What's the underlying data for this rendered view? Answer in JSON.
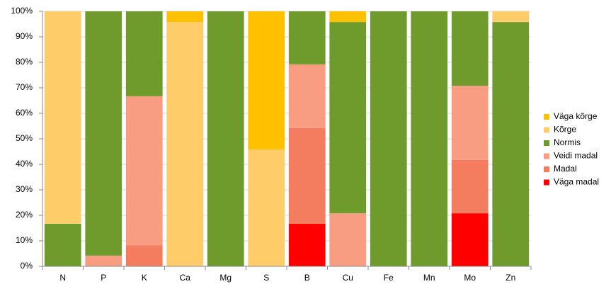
{
  "chart_data": {
    "type": "stacked_bar",
    "categories": [
      "N",
      "P",
      "K",
      "Ca",
      "Mg",
      "S",
      "B",
      "Cu",
      "Fe",
      "Mn",
      "Mo",
      "Zn"
    ],
    "series": [
      {
        "name": "Väga madal",
        "color": "#ff0000",
        "values": [
          0,
          0,
          0,
          0,
          0,
          0,
          16.7,
          0,
          0,
          0,
          20.8,
          0
        ]
      },
      {
        "name": "Madal",
        "color": "#f47c5f",
        "values": [
          0,
          0,
          8.3,
          0,
          0,
          0,
          37.5,
          0,
          0,
          0,
          20.9,
          0
        ]
      },
      {
        "name": "Veidi madal",
        "color": "#f89d82",
        "values": [
          0,
          4.2,
          58.4,
          0,
          0,
          0,
          25,
          20.8,
          0,
          0,
          29.1,
          0
        ]
      },
      {
        "name": "Normis",
        "color": "#6f9a2c",
        "values": [
          16.7,
          95.8,
          33.3,
          0,
          100,
          0,
          20.8,
          75,
          100,
          100,
          29.2,
          95.8
        ]
      },
      {
        "name": "Kõrge",
        "color": "#fecd6a",
        "values": [
          83.3,
          0,
          0,
          95.8,
          0,
          45.8,
          0,
          0,
          0,
          0,
          0,
          4.2
        ]
      },
      {
        "name": "Väga kõrge",
        "color": "#ffc000",
        "values": [
          0,
          0,
          0,
          4.2,
          0,
          54.2,
          0,
          4.2,
          0,
          0,
          0,
          0
        ]
      }
    ],
    "ylim": [
      0,
      100
    ],
    "yticks": [
      {
        "value": 0,
        "label": "0%"
      },
      {
        "value": 10,
        "label": "10%"
      },
      {
        "value": 20,
        "label": "20%"
      },
      {
        "value": 30,
        "label": "30%"
      },
      {
        "value": 40,
        "label": "40%"
      },
      {
        "value": 50,
        "label": "50%"
      },
      {
        "value": 60,
        "label": "60%"
      },
      {
        "value": 70,
        "label": "70%"
      },
      {
        "value": 80,
        "label": "80%"
      },
      {
        "value": 90,
        "label": "90%"
      },
      {
        "value": 100,
        "label": "100%"
      }
    ],
    "grid": true,
    "legend": "right"
  }
}
